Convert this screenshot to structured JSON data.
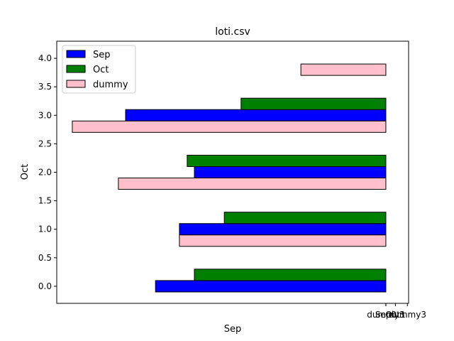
{
  "chart_data": {
    "type": "bar",
    "orientation": "horizontal",
    "title": "loti.csv",
    "xlabel": "Sep",
    "ylabel": "Oct",
    "ylim": [
      -0.3,
      4.3
    ],
    "y_ticks": [
      "0.0",
      "0.5",
      "1.0",
      "1.5",
      "2.0",
      "2.5",
      "3.0",
      "3.5",
      "4.0"
    ],
    "x_tick_labels": [
      "dummy3",
      "Sep0",
      "Oct1",
      "dummy3"
    ],
    "legend_position": "top-left",
    "series": [
      {
        "name": "Sep",
        "color": "#0000ff",
        "bars": [
          {
            "y": 0.0,
            "left": 40.5,
            "right": 79
          },
          {
            "y": 1.0,
            "left": 44.5,
            "right": 79
          },
          {
            "y": 2.0,
            "left": 47,
            "right": 79
          },
          {
            "y": 3.0,
            "left": 35.5,
            "right": 79
          }
        ]
      },
      {
        "name": "Oct",
        "color": "#008000",
        "bars": [
          {
            "y": 0.2,
            "left": 47,
            "right": 79
          },
          {
            "y": 1.2,
            "left": 52,
            "right": 79
          },
          {
            "y": 2.2,
            "left": 45.8,
            "right": 79
          },
          {
            "y": 3.2,
            "left": 54.8,
            "right": 79
          }
        ]
      },
      {
        "name": "dummy",
        "color": "#ffc0cb",
        "bars": [
          {
            "y": 0.8,
            "left": 44.5,
            "right": 79
          },
          {
            "y": 1.8,
            "left": 34.3,
            "right": 79
          },
          {
            "y": 2.8,
            "left": 26.6,
            "right": 79
          },
          {
            "y": 3.8,
            "left": 64.8,
            "right": 79
          }
        ]
      }
    ],
    "bar_height": 0.2,
    "xlim": [
      24,
      82.8
    ]
  }
}
